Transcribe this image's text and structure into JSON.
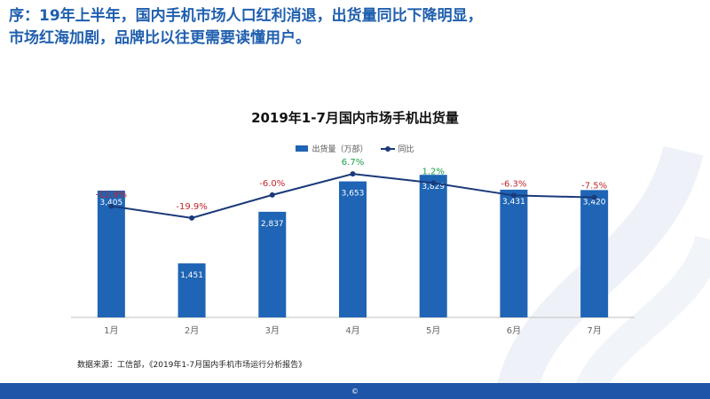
{
  "headline": {
    "line1": "序：19年上半年，国内手机市场人口红利消退，出货量同比下降明显，",
    "line2": "市场红海加剧，品牌比以往更需要读懂用户。"
  },
  "source_note": "数据来源：工信部，《2019年1-7月国内手机市场运行分析报告》",
  "footer_text": "©",
  "colors": {
    "headline": "#1f5fae",
    "bar": "#1f64b5",
    "line": "#1a3a7a",
    "negative": "#c0262d",
    "positive": "#1aa14d",
    "footer": "#1f55a8"
  },
  "chart_data": {
    "type": "bar",
    "title": "2019年1-7月国内市场手机出货量",
    "categories": [
      "1月",
      "2月",
      "3月",
      "4月",
      "5月",
      "6月",
      "7月"
    ],
    "series": [
      {
        "name": "出货量（万部）",
        "type": "bar",
        "values": [
          3405,
          1451,
          2837,
          3653,
          3829,
          3431,
          3420
        ],
        "labels": [
          "3,405",
          "1,451",
          "2,837",
          "3,653",
          "3,829",
          "3,431",
          "3,420"
        ]
      },
      {
        "name": "同比",
        "type": "line",
        "values": [
          -12.8,
          -19.9,
          -6.0,
          6.7,
          1.2,
          -6.3,
          -7.5
        ],
        "labels": [
          "-12.8%",
          "-19.9%",
          "-6.0%",
          "6.7%",
          "1.2%",
          "-6.3%",
          "-7.5%"
        ]
      }
    ],
    "ylim_bar": [
      0,
      4000
    ],
    "ylim_line": [
      -80,
      10
    ],
    "legend_position": "top-center",
    "grid": false
  }
}
